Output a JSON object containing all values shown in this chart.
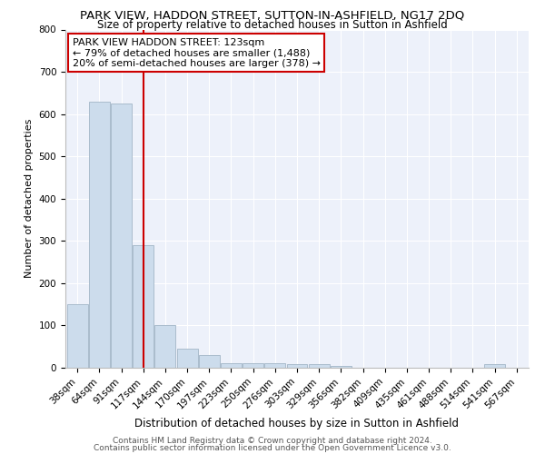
{
  "title": "PARK VIEW, HADDON STREET, SUTTON-IN-ASHFIELD, NG17 2DQ",
  "subtitle": "Size of property relative to detached houses in Sutton in Ashfield",
  "xlabel": "Distribution of detached houses by size in Sutton in Ashfield",
  "ylabel": "Number of detached properties",
  "footnote1": "Contains HM Land Registry data © Crown copyright and database right 2024.",
  "footnote2": "Contains public sector information licensed under the Open Government Licence v3.0.",
  "categories": [
    "38sqm",
    "64sqm",
    "91sqm",
    "117sqm",
    "144sqm",
    "170sqm",
    "197sqm",
    "223sqm",
    "250sqm",
    "276sqm",
    "303sqm",
    "329sqm",
    "356sqm",
    "382sqm",
    "409sqm",
    "435sqm",
    "461sqm",
    "488sqm",
    "514sqm",
    "541sqm",
    "567sqm"
  ],
  "values": [
    150,
    630,
    625,
    290,
    100,
    45,
    30,
    10,
    10,
    10,
    8,
    8,
    5,
    0,
    0,
    0,
    0,
    0,
    0,
    8,
    0
  ],
  "bar_color": "#ccdcec",
  "bar_edge_color": "#aabccc",
  "vline_x": 3.0,
  "vline_color": "#cc0000",
  "annotation_box_text": "PARK VIEW HADDON STREET: 123sqm\n← 79% of detached houses are smaller (1,488)\n20% of semi-detached houses are larger (378) →",
  "annotation_box_color": "#cc0000",
  "ylim": [
    0,
    800
  ],
  "yticks": [
    0,
    100,
    200,
    300,
    400,
    500,
    600,
    700,
    800
  ],
  "background_color": "#edf1fa",
  "grid_color": "#ffffff",
  "title_fontsize": 9.5,
  "subtitle_fontsize": 8.5,
  "annotation_fontsize": 8,
  "ylabel_fontsize": 8,
  "xlabel_fontsize": 8.5,
  "tick_fontsize": 7.5,
  "footnote_fontsize": 6.5
}
